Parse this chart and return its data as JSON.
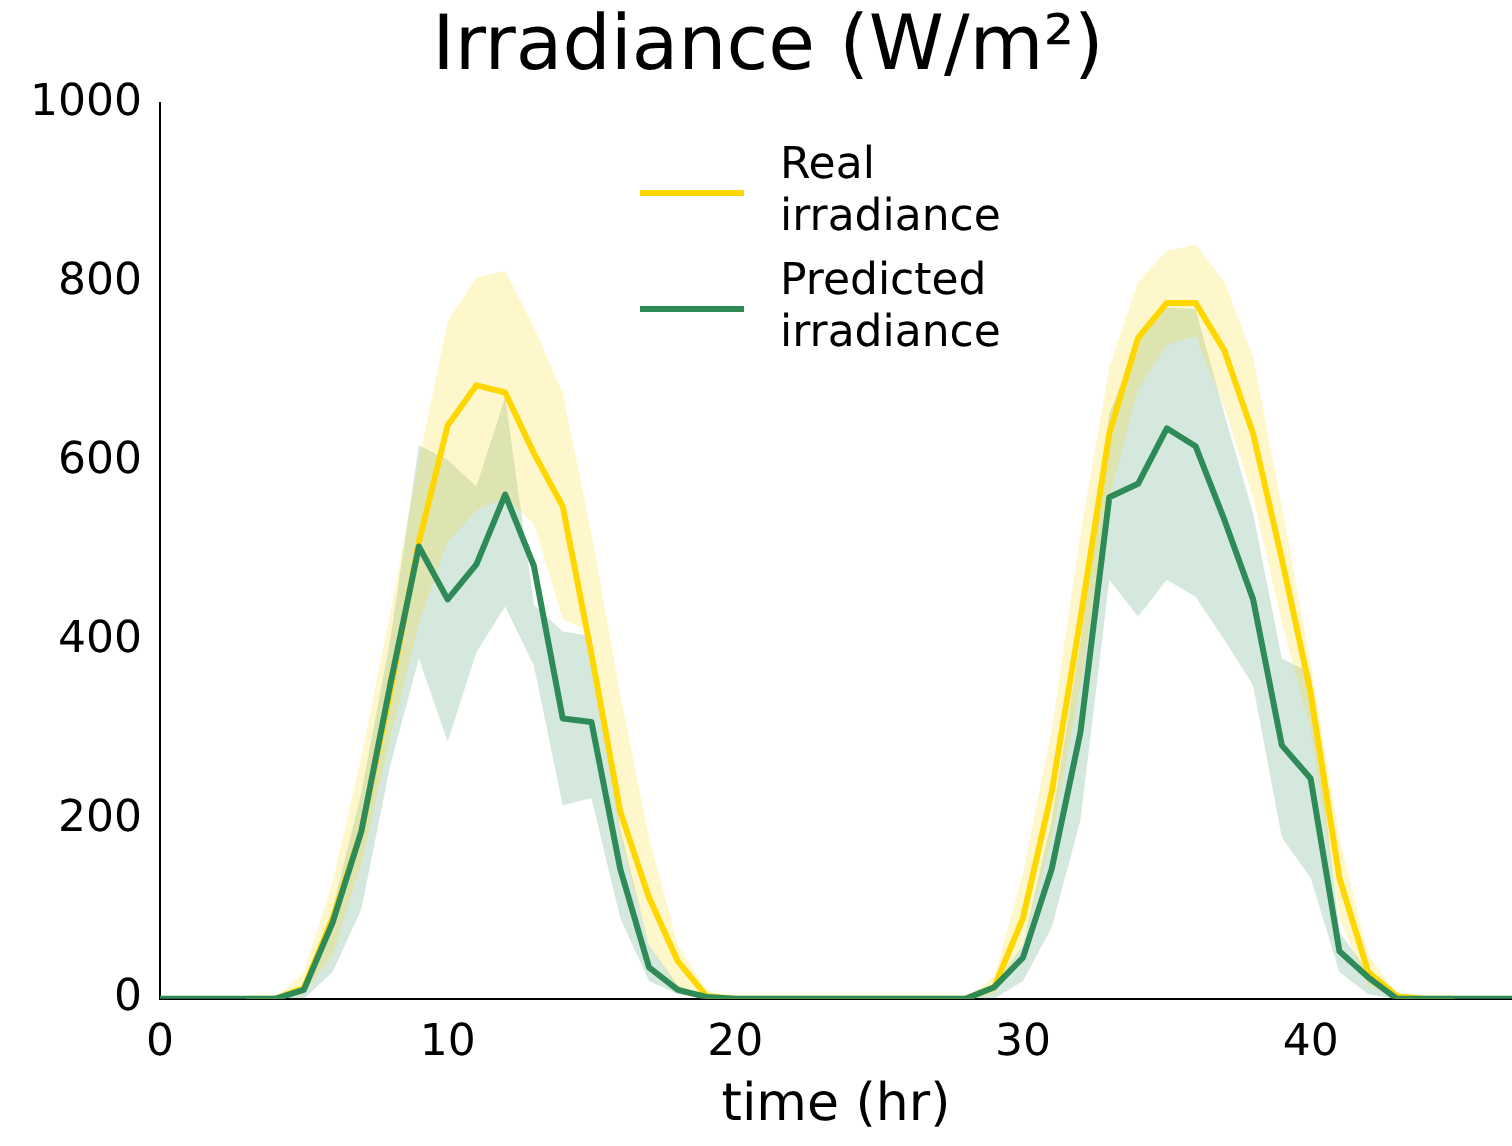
{
  "chart_data": {
    "type": "line",
    "title": "Irradiance (W/m²)",
    "xlabel": "time (hr)",
    "x": [
      0,
      1,
      2,
      3,
      4,
      5,
      6,
      7,
      8,
      9,
      10,
      11,
      12,
      13,
      14,
      15,
      16,
      17,
      18,
      19,
      20,
      21,
      22,
      23,
      24,
      25,
      26,
      27,
      28,
      29,
      30,
      31,
      32,
      33,
      34,
      35,
      36,
      37,
      38,
      39,
      40,
      41,
      42,
      43,
      44,
      45,
      46,
      47
    ],
    "series": [
      {
        "name": "Real irradiance",
        "color": "#ffd700",
        "values": [
          null,
          null,
          null,
          0,
          0,
          12,
          90,
          187,
          342,
          510,
          640,
          685,
          677,
          609,
          550,
          385,
          209,
          113,
          42,
          3,
          0,
          0,
          0,
          0,
          0,
          0,
          0,
          0,
          0,
          13,
          90,
          231,
          425,
          631,
          738,
          777,
          777,
          724,
          631,
          491,
          342,
          135,
          30,
          3,
          0,
          0,
          null,
          null
        ],
        "lower": [
          0,
          0,
          0,
          0,
          0,
          5,
          50,
          150,
          290,
          420,
          510,
          545,
          560,
          530,
          424,
          409,
          180,
          60,
          10,
          0,
          0,
          0,
          0,
          0,
          0,
          0,
          0,
          0,
          0,
          5,
          60,
          180,
          350,
          560,
          680,
          730,
          740,
          660,
          560,
          420,
          300,
          90,
          15,
          0,
          0,
          0,
          0,
          0
        ],
        "upper": [
          0,
          0,
          0,
          0,
          0,
          30,
          130,
          270,
          430,
          600,
          757,
          805,
          813,
          750,
          676,
          520,
          340,
          180,
          60,
          10,
          0,
          0,
          0,
          0,
          0,
          0,
          0,
          0,
          0,
          25,
          140,
          300,
          520,
          705,
          801,
          835,
          842,
          801,
          716,
          550,
          375,
          180,
          50,
          5,
          0,
          0,
          0,
          0
        ]
      },
      {
        "name": "Predicted irradiance",
        "color": "#2e8b57",
        "values": [
          0,
          0,
          0,
          0,
          0,
          10,
          85,
          187,
          350,
          505,
          446,
          485,
          563,
          483,
          313,
          309,
          145,
          35,
          10,
          2,
          0,
          0,
          0,
          0,
          0,
          0,
          0,
          0,
          0,
          13,
          46,
          145,
          298,
          560,
          575,
          637,
          617,
          535,
          446,
          283,
          246,
          53,
          24,
          0,
          0,
          0,
          0,
          0
        ],
        "lower": [
          0,
          0,
          0,
          0,
          0,
          0,
          30,
          100,
          260,
          380,
          287,
          387,
          438,
          372,
          216,
          224,
          90,
          20,
          5,
          0,
          0,
          0,
          0,
          0,
          0,
          0,
          0,
          0,
          0,
          0,
          20,
          80,
          200,
          468,
          427,
          468,
          449,
          401,
          350,
          180,
          135,
          30,
          5,
          0,
          0,
          0,
          0,
          0
        ],
        "upper": [
          0,
          0,
          0,
          0,
          0,
          15,
          100,
          230,
          400,
          618,
          602,
          572,
          672,
          440,
          410,
          405,
          190,
          60,
          15,
          2,
          0,
          0,
          0,
          0,
          0,
          0,
          0,
          0,
          0,
          15,
          60,
          200,
          400,
          653,
          735,
          772,
          770,
          653,
          542,
          380,
          364,
          75,
          30,
          3,
          0,
          0,
          0,
          0
        ]
      }
    ],
    "xlim": [
      0,
      47
    ],
    "xticks": [
      0,
      10,
      20,
      30,
      40
    ],
    "ylim": [
      0,
      1000
    ],
    "yticks": [
      0,
      200,
      400,
      600,
      800,
      1000
    ],
    "grid": false,
    "legend": "top",
    "marker": "none",
    "line_style": "solid"
  }
}
